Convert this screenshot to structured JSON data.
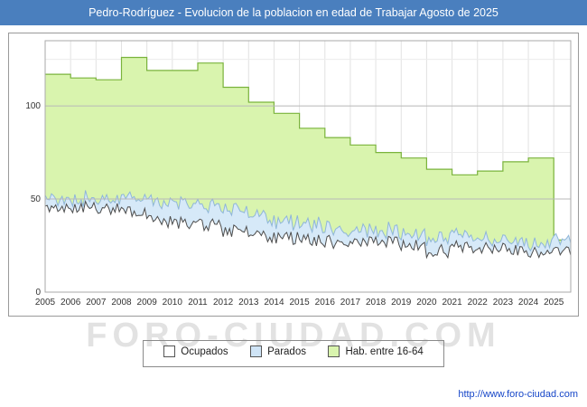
{
  "header": {
    "title": "Pedro-Rodríguez - Evolucion de la poblacion en edad de Trabajar Agosto de 2025",
    "bar_color": "#4a7fbe"
  },
  "watermark": {
    "text": "FORO-CIUDAD.COM"
  },
  "footer": {
    "url": "http://www.foro-ciudad.com"
  },
  "legend": {
    "items": [
      {
        "label": "Ocupados",
        "color": "#ffffff"
      },
      {
        "label": "Parados",
        "color": "#cfe4f6"
      },
      {
        "label": "Hab. entre 16-64",
        "color": "#d9f4ae"
      }
    ]
  },
  "chart_data": {
    "type": "area",
    "title": "Pedro-Rodríguez - Evolucion de la poblacion en edad de Trabajar Agosto de 2025",
    "xlabel": "",
    "ylabel": "",
    "x_start": 2005,
    "x_end": 2025.667,
    "x_end_label": "Agosto 2025",
    "categories": [
      2005,
      2006,
      2007,
      2008,
      2009,
      2010,
      2011,
      2012,
      2013,
      2014,
      2015,
      2016,
      2017,
      2018,
      2019,
      2020,
      2021,
      2022,
      2023,
      2024,
      2025
    ],
    "series": [
      {
        "name": "Hab. entre 16-64",
        "style": "step-area",
        "fill": "#d9f4ae",
        "stroke": "#7ab33c",
        "values": [
          117,
          115,
          114,
          126,
          119,
          119,
          123,
          110,
          102,
          96,
          88,
          83,
          79,
          75,
          72,
          66,
          63,
          65,
          70,
          72,
          28
        ]
      },
      {
        "name": "Parados",
        "style": "stacked-noisy-area",
        "fill": "#d6e9f8",
        "stroke": "#8fb6d9",
        "values": [
          5,
          4,
          5,
          8,
          10,
          11,
          10,
          11,
          10,
          9,
          8,
          7,
          6,
          6,
          6,
          8,
          7,
          5,
          5,
          5,
          6
        ]
      },
      {
        "name": "Ocupados",
        "style": "noisy-area",
        "fill": "#ffffff",
        "stroke": "#4d4d4d",
        "values": [
          44,
          46,
          45,
          44,
          38,
          37,
          36,
          33,
          30,
          29,
          28,
          27,
          28,
          27,
          25,
          22,
          24,
          24,
          23,
          22,
          21
        ]
      }
    ],
    "ylim": [
      0,
      135
    ],
    "yticks": [
      0,
      50,
      100
    ],
    "grid": true,
    "legend_position": "bottom",
    "noise_amp": {
      "ocupados": 3.5,
      "parados": 2
    }
  }
}
